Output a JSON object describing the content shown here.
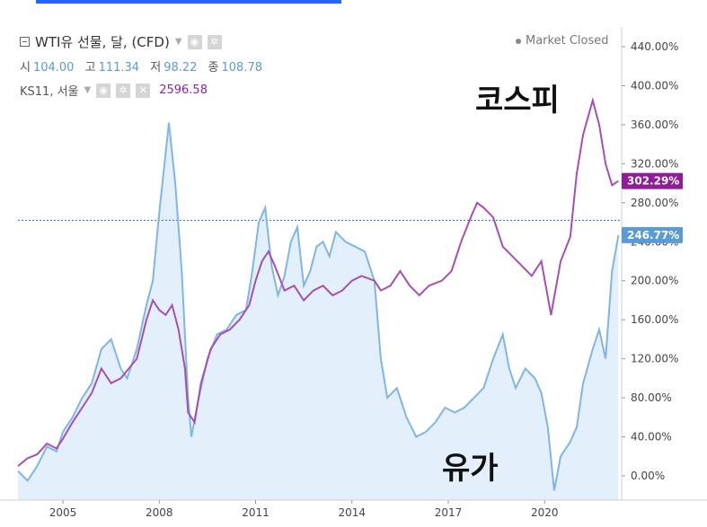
{
  "legend": {
    "symbol_title": "WTI유 선물, 달, (CFD)",
    "ohlc": [
      {
        "label": "시",
        "value": "104.00"
      },
      {
        "label": "고",
        "value": "111.34"
      },
      {
        "label": "저",
        "value": "98.22"
      },
      {
        "label": "종",
        "value": "108.78"
      }
    ],
    "compare_symbol": "KS11, 서울",
    "compare_value": "2596.58"
  },
  "market_status": "Market Closed",
  "annotations": {
    "kospi": "코스피",
    "oil": "유가"
  },
  "colors": {
    "kospi": "#a64fb3",
    "oil_line": "#7fb6e6",
    "oil_fill": "#e3f0fb",
    "oil_badge": "#5b9bd5",
    "kospi_badge": "#8e1d96",
    "dotted_line": "#2962ff"
  },
  "chart_data": {
    "type": "line",
    "x_tick_labels": [
      "2005",
      "2008",
      "2011",
      "2014",
      "2017",
      "2020"
    ],
    "y_tick_labels": [
      "440.00%",
      "400.00%",
      "360.00%",
      "320.00%",
      "280.00%",
      "240.00%",
      "200.00%",
      "160.00%",
      "120.00%",
      "80.00%",
      "40.00%",
      "0.00%"
    ],
    "ylim": [
      -15,
      455
    ],
    "xlim": [
      2003.6,
      2022.4
    ],
    "grid": false,
    "reference_line": 262,
    "series": [
      {
        "key": "kospi",
        "last_label": "302.29%",
        "points": [
          [
            2003.6,
            10
          ],
          [
            2003.9,
            18
          ],
          [
            2004.2,
            22
          ],
          [
            2004.5,
            33
          ],
          [
            2004.8,
            28
          ],
          [
            2005.0,
            38
          ],
          [
            2005.3,
            55
          ],
          [
            2005.6,
            70
          ],
          [
            2005.9,
            85
          ],
          [
            2006.2,
            110
          ],
          [
            2006.5,
            95
          ],
          [
            2006.8,
            100
          ],
          [
            2007.0,
            108
          ],
          [
            2007.3,
            120
          ],
          [
            2007.6,
            160
          ],
          [
            2007.8,
            180
          ],
          [
            2008.0,
            170
          ],
          [
            2008.2,
            165
          ],
          [
            2008.4,
            175
          ],
          [
            2008.6,
            150
          ],
          [
            2008.8,
            110
          ],
          [
            2008.9,
            65
          ],
          [
            2009.1,
            55
          ],
          [
            2009.3,
            95
          ],
          [
            2009.6,
            130
          ],
          [
            2009.9,
            145
          ],
          [
            2010.2,
            150
          ],
          [
            2010.5,
            160
          ],
          [
            2010.8,
            175
          ],
          [
            2011.0,
            200
          ],
          [
            2011.2,
            220
          ],
          [
            2011.4,
            230
          ],
          [
            2011.6,
            215
          ],
          [
            2011.9,
            190
          ],
          [
            2012.2,
            195
          ],
          [
            2012.5,
            180
          ],
          [
            2012.8,
            190
          ],
          [
            2013.1,
            195
          ],
          [
            2013.4,
            185
          ],
          [
            2013.7,
            190
          ],
          [
            2014.0,
            200
          ],
          [
            2014.3,
            205
          ],
          [
            2014.7,
            200
          ],
          [
            2014.9,
            190
          ],
          [
            2015.2,
            195
          ],
          [
            2015.5,
            210
          ],
          [
            2015.8,
            195
          ],
          [
            2016.1,
            185
          ],
          [
            2016.4,
            195
          ],
          [
            2016.8,
            200
          ],
          [
            2017.1,
            210
          ],
          [
            2017.4,
            240
          ],
          [
            2017.7,
            265
          ],
          [
            2017.9,
            280
          ],
          [
            2018.1,
            275
          ],
          [
            2018.4,
            265
          ],
          [
            2018.7,
            235
          ],
          [
            2019.0,
            225
          ],
          [
            2019.3,
            215
          ],
          [
            2019.6,
            205
          ],
          [
            2019.9,
            220
          ],
          [
            2020.2,
            165
          ],
          [
            2020.5,
            220
          ],
          [
            2020.8,
            245
          ],
          [
            2021.0,
            310
          ],
          [
            2021.2,
            350
          ],
          [
            2021.5,
            385
          ],
          [
            2021.7,
            360
          ],
          [
            2021.9,
            320
          ],
          [
            2022.1,
            298
          ],
          [
            2022.3,
            302.29
          ]
        ]
      },
      {
        "key": "oil",
        "last_label": "246.77%",
        "points": [
          [
            2003.6,
            5
          ],
          [
            2003.9,
            -5
          ],
          [
            2004.2,
            10
          ],
          [
            2004.5,
            30
          ],
          [
            2004.8,
            25
          ],
          [
            2005.0,
            45
          ],
          [
            2005.3,
            60
          ],
          [
            2005.6,
            80
          ],
          [
            2005.9,
            95
          ],
          [
            2006.2,
            130
          ],
          [
            2006.5,
            140
          ],
          [
            2006.8,
            110
          ],
          [
            2007.0,
            100
          ],
          [
            2007.3,
            130
          ],
          [
            2007.6,
            175
          ],
          [
            2007.8,
            200
          ],
          [
            2008.0,
            270
          ],
          [
            2008.3,
            362
          ],
          [
            2008.5,
            300
          ],
          [
            2008.7,
            210
          ],
          [
            2008.9,
            80
          ],
          [
            2009.0,
            40
          ],
          [
            2009.2,
            75
          ],
          [
            2009.5,
            120
          ],
          [
            2009.8,
            145
          ],
          [
            2010.1,
            150
          ],
          [
            2010.4,
            165
          ],
          [
            2010.7,
            170
          ],
          [
            2010.9,
            210
          ],
          [
            2011.1,
            260
          ],
          [
            2011.3,
            275
          ],
          [
            2011.5,
            215
          ],
          [
            2011.7,
            185
          ],
          [
            2011.9,
            205
          ],
          [
            2012.1,
            240
          ],
          [
            2012.3,
            255
          ],
          [
            2012.5,
            195
          ],
          [
            2012.7,
            210
          ],
          [
            2012.9,
            235
          ],
          [
            2013.1,
            240
          ],
          [
            2013.3,
            225
          ],
          [
            2013.5,
            250
          ],
          [
            2013.8,
            240
          ],
          [
            2014.1,
            235
          ],
          [
            2014.4,
            230
          ],
          [
            2014.7,
            200
          ],
          [
            2014.9,
            120
          ],
          [
            2015.1,
            80
          ],
          [
            2015.4,
            90
          ],
          [
            2015.7,
            60
          ],
          [
            2016.0,
            40
          ],
          [
            2016.3,
            45
          ],
          [
            2016.6,
            55
          ],
          [
            2016.9,
            70
          ],
          [
            2017.2,
            65
          ],
          [
            2017.5,
            70
          ],
          [
            2017.8,
            80
          ],
          [
            2018.1,
            90
          ],
          [
            2018.4,
            120
          ],
          [
            2018.7,
            145
          ],
          [
            2018.9,
            110
          ],
          [
            2019.1,
            90
          ],
          [
            2019.4,
            110
          ],
          [
            2019.7,
            100
          ],
          [
            2019.9,
            85
          ],
          [
            2020.1,
            50
          ],
          [
            2020.3,
            -15
          ],
          [
            2020.5,
            20
          ],
          [
            2020.8,
            35
          ],
          [
            2021.0,
            50
          ],
          [
            2021.2,
            95
          ],
          [
            2021.5,
            130
          ],
          [
            2021.7,
            150
          ],
          [
            2021.9,
            120
          ],
          [
            2022.1,
            210
          ],
          [
            2022.3,
            246.77
          ]
        ]
      }
    ]
  }
}
